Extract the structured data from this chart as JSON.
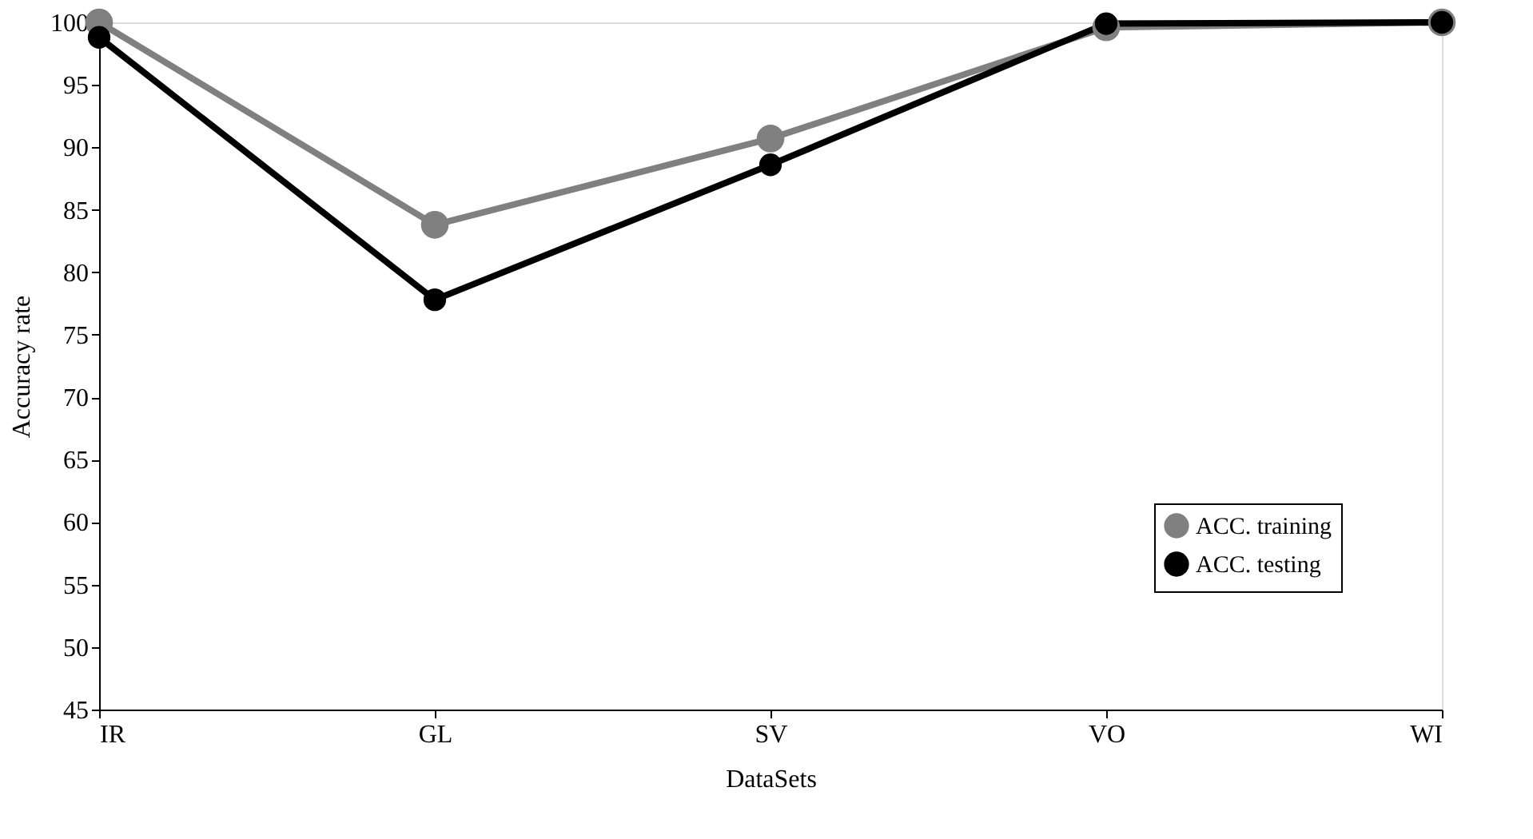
{
  "chart_data": {
    "type": "line",
    "xlabel": "DataSets",
    "ylabel": "Accuracy rate",
    "categories": [
      "IR",
      "GL",
      "SV",
      "VO",
      "WI"
    ],
    "series": [
      {
        "name": "ACC. training",
        "color": "#808080",
        "values": [
          100,
          83.8,
          90.7,
          99.6,
          100
        ]
      },
      {
        "name": "ACC. testing",
        "color": "#000000",
        "values": [
          98.8,
          77.8,
          88.6,
          99.9,
          100
        ]
      }
    ],
    "ylim": [
      45,
      100
    ],
    "yticks": [
      45,
      50,
      55,
      60,
      65,
      70,
      75,
      80,
      85,
      90,
      95,
      100
    ],
    "grid": false,
    "legend": "right",
    "marker": "circle",
    "line_style": "solid"
  }
}
